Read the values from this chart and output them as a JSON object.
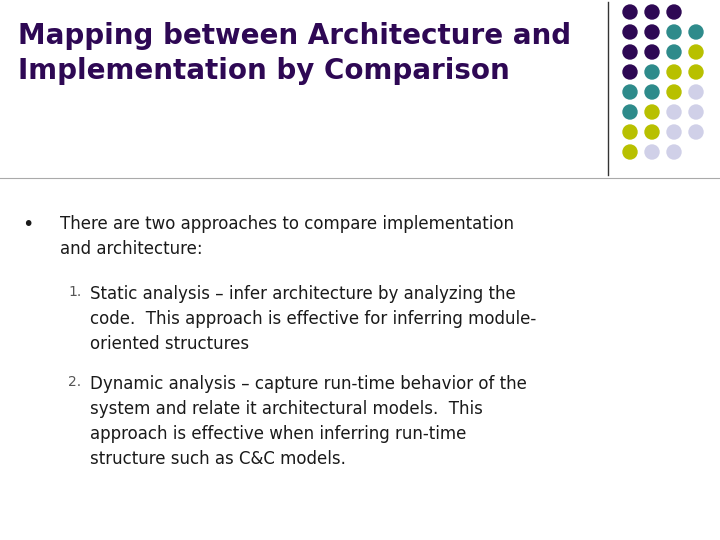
{
  "title_line1": "Mapping between Architecture and",
  "title_line2": "Implementation by Comparison",
  "title_color": "#2E0854",
  "background_color": "#FFFFFF",
  "bullet_text": "There are two approaches to compare implementation\nand architecture:",
  "item1_num": "1.",
  "item1_text": "Static analysis – infer architecture by analyzing the\ncode.  This approach is effective for inferring module-\noriented structures",
  "item2_num": "2.",
  "item2_text": "Dynamic analysis – capture run-time behavior of the\nsystem and relate it architectural models.  This\napproach is effective when inferring run-time\nstructure such as C&C models.",
  "dot_grid": [
    [
      "#2E0854",
      "#2E0854",
      "#2E0854"
    ],
    [
      "#2E0854",
      "#2E0854",
      "#2E8B8B",
      "#2E8B8B"
    ],
    [
      "#2E0854",
      "#2E0854",
      "#2E8B8B",
      "#B8C000"
    ],
    [
      "#2E0854",
      "#2E8B8B",
      "#B8C000",
      "#B8C000"
    ],
    [
      "#2E8B8B",
      "#2E8B8B",
      "#B8C000",
      "#D0D0E8"
    ],
    [
      "#2E8B8B",
      "#B8C000",
      "#D0D0E8",
      "#D0D0E8"
    ],
    [
      "#B8C000",
      "#B8C000",
      "#D0D0E8",
      "#D0D0E8"
    ],
    [
      "#B8C000",
      "#D0D0E8",
      "#D0D0E8",
      ""
    ]
  ],
  "text_color": "#1A1A1A",
  "divider_color": "#333333",
  "title_fontsize": 20,
  "body_fontsize": 12,
  "num_fontsize": 10,
  "bullet_fontsize": 14
}
